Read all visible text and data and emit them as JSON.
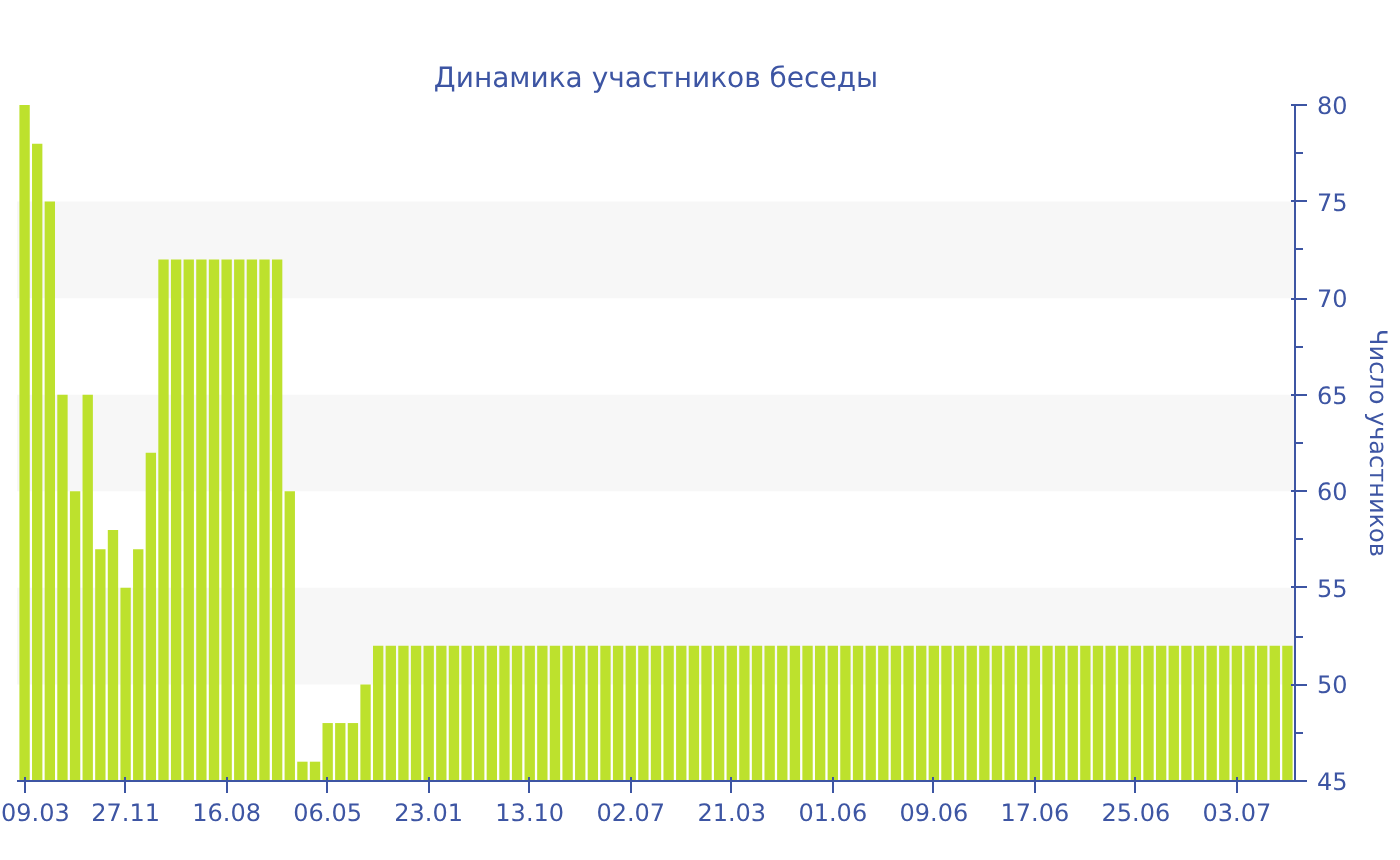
{
  "chart_data": {
    "type": "bar",
    "title": "Динамика участников беседы",
    "ylabel": "Число участников",
    "categories": [
      "09.03",
      null,
      null,
      null,
      null,
      null,
      null,
      null,
      "27.11",
      null,
      null,
      null,
      null,
      null,
      null,
      null,
      "16.08",
      null,
      null,
      null,
      null,
      null,
      null,
      null,
      "06.05",
      null,
      null,
      null,
      null,
      null,
      null,
      null,
      "23.01",
      null,
      null,
      null,
      null,
      null,
      null,
      null,
      "13.10",
      null,
      null,
      null,
      null,
      null,
      null,
      null,
      "02.07",
      null,
      null,
      null,
      null,
      null,
      null,
      null,
      "21.03",
      null,
      null,
      null,
      null,
      null,
      null,
      null,
      "01.06",
      null,
      null,
      null,
      null,
      null,
      null,
      null,
      "09.06",
      null,
      null,
      null,
      null,
      null,
      null,
      null,
      "17.06",
      null,
      null,
      null,
      null,
      null,
      null,
      null,
      "25.06",
      null,
      null,
      null,
      null,
      null,
      null,
      null,
      "03.07",
      null,
      null,
      null,
      null
    ],
    "values": [
      80,
      78,
      75,
      65,
      60,
      65,
      57,
      58,
      55,
      57,
      62,
      72,
      72,
      72,
      72,
      72,
      72,
      72,
      72,
      72,
      72,
      60,
      46,
      46,
      48,
      48,
      48,
      50,
      52,
      52,
      52,
      52,
      52,
      52,
      52,
      52,
      52,
      52,
      52,
      52,
      52,
      52,
      52,
      52,
      52,
      52,
      52,
      52,
      52,
      52,
      52,
      52,
      52,
      52,
      52,
      52,
      52,
      52,
      52,
      52,
      52,
      52,
      52,
      52,
      52,
      52,
      52,
      52,
      52,
      52,
      52,
      52,
      52,
      52,
      52,
      52,
      52,
      52,
      52,
      52,
      52,
      52,
      52,
      52,
      52,
      52,
      52,
      52,
      52,
      52,
      52,
      52,
      52,
      52,
      52,
      52,
      52,
      52,
      52,
      52,
      52
    ],
    "color": "#bde12d",
    "ylim": [
      45,
      80
    ],
    "yticks": [
      45,
      50,
      55,
      60,
      65,
      70,
      75,
      80
    ],
    "grid": false
  }
}
